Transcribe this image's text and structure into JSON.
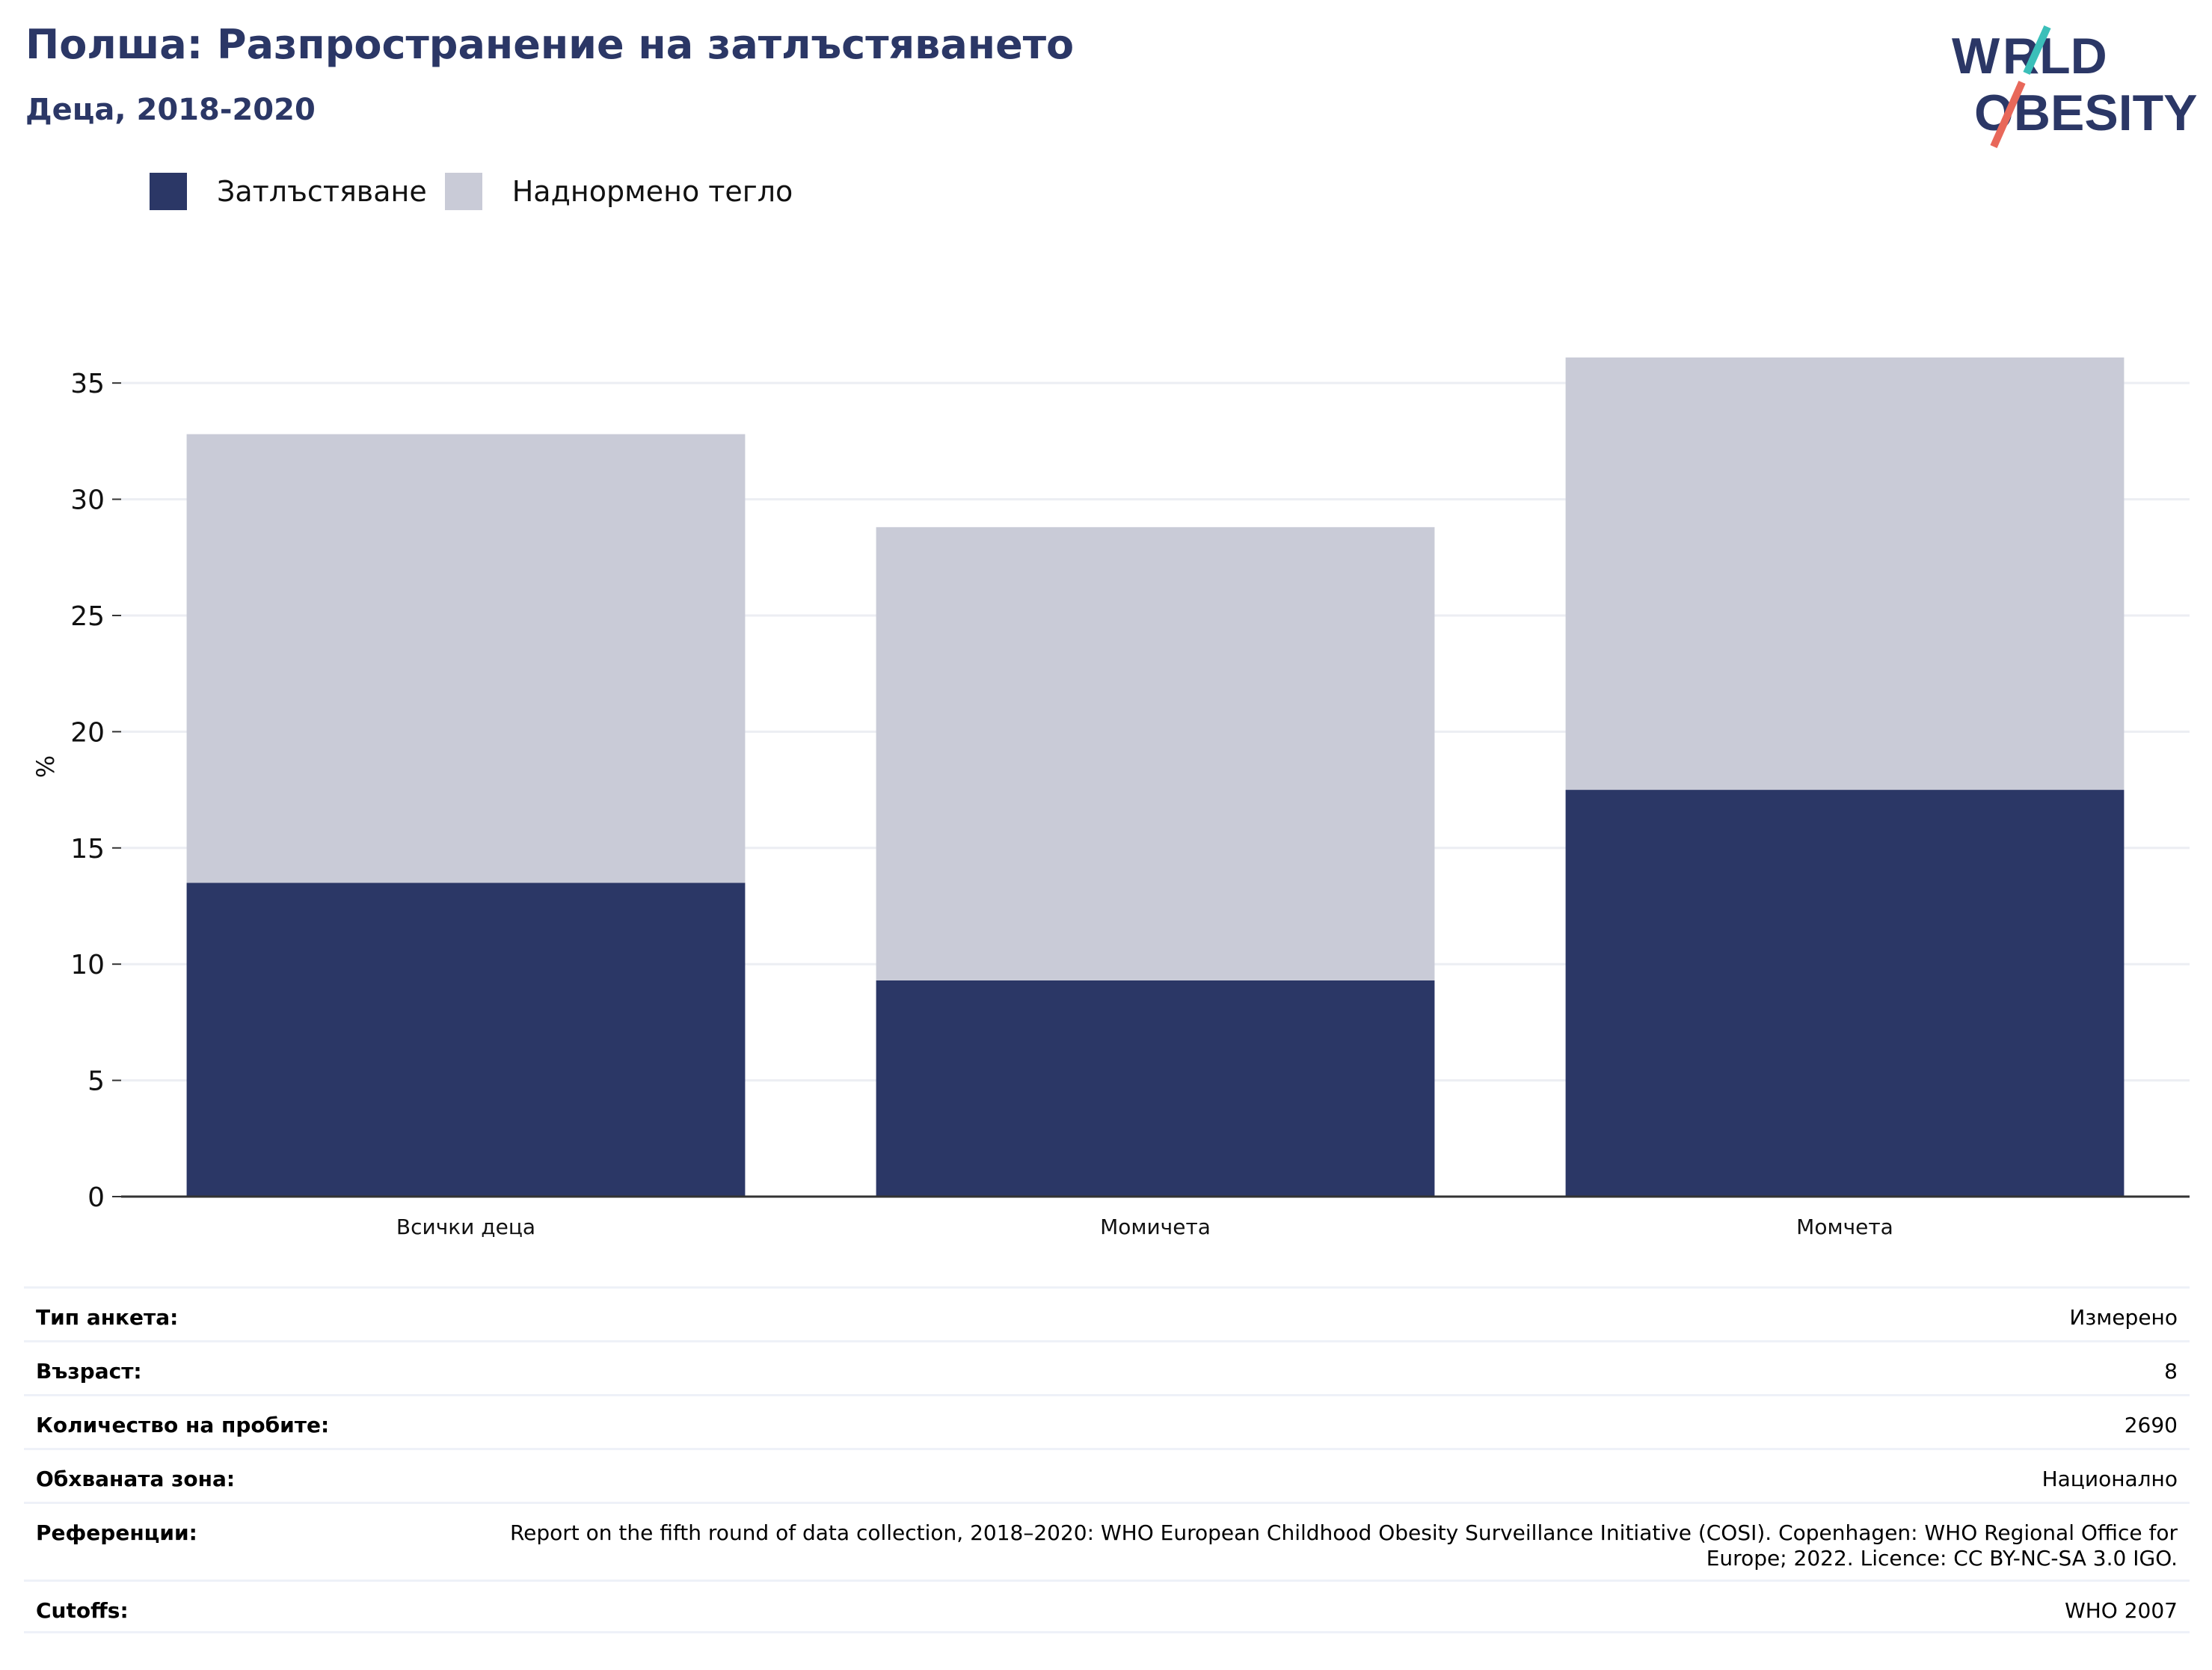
{
  "header": {
    "title": "Полша: Разпространение на затлъстяването",
    "subtitle": "Деца, 2018-2020"
  },
  "logo": {
    "line1": "WORLD",
    "line2": "OBESITY"
  },
  "colors": {
    "obesity": "#2b3766",
    "overweight": "#c9cbd7",
    "title": "#2b3766",
    "grid": "#eceef3",
    "axis": "#333333"
  },
  "chart_data": {
    "type": "bar",
    "stacked": true,
    "categories": [
      "Всички деца",
      "Момичета",
      "Момчета"
    ],
    "series": [
      {
        "name": "Затлъстяване",
        "values": [
          13.5,
          9.3,
          17.5
        ]
      },
      {
        "name": "Наднормено тегло",
        "values": [
          19.3,
          19.5,
          18.6
        ]
      }
    ],
    "ylabel": "%",
    "ylim": [
      0,
      37
    ],
    "yticks": [
      0,
      5,
      10,
      15,
      20,
      25,
      30,
      35
    ],
    "grid": true,
    "legend": "top-left"
  },
  "meta": [
    {
      "key": "Тип анкета:",
      "value": "Измерено"
    },
    {
      "key": "Възраст:",
      "value": "8"
    },
    {
      "key": "Количество на пробите:",
      "value": "2690"
    },
    {
      "key": "Обхваната зона:",
      "value": "Национално"
    },
    {
      "key": "Референции:",
      "value": "Report on the fifth round of data collection, 2018–2020: WHO European Childhood Obesity Surveillance Initiative (COSI). Copenhagen: WHO Regional Office for Europe; 2022. Licence: CC BY-NC-SA 3.0 IGO."
    },
    {
      "key": "Cutoffs:",
      "value": "WHO 2007"
    }
  ]
}
